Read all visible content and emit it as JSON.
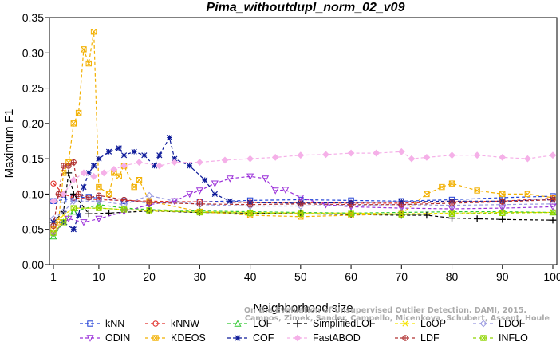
{
  "chart_data": {
    "type": "line",
    "title": "Pima_withoutdupl_norm_02_v09",
    "xlabel": "Neighborhood size",
    "ylabel": "Maximum F1",
    "xlim": [
      1,
      100
    ],
    "ylim": [
      0,
      0.35
    ],
    "xticks": [
      "1",
      "10",
      "20",
      "30",
      "40",
      "50",
      "60",
      "70",
      "80",
      "90",
      "100"
    ],
    "yticks": [
      "0.00",
      "0.05",
      "0.10",
      "0.15",
      "0.20",
      "0.25",
      "0.30",
      "0.35"
    ],
    "legend_position": "bottom",
    "series": [
      {
        "name": "kNN",
        "color": "#1f3fd6",
        "marker": "square",
        "dash": "4,3",
        "points": [
          [
            1,
            0.09
          ],
          [
            3,
            0.092
          ],
          [
            5,
            0.094
          ],
          [
            8,
            0.096
          ],
          [
            10,
            0.094
          ],
          [
            15,
            0.09
          ],
          [
            20,
            0.088
          ],
          [
            30,
            0.089
          ],
          [
            40,
            0.091
          ],
          [
            50,
            0.092
          ],
          [
            60,
            0.091
          ],
          [
            70,
            0.09
          ],
          [
            80,
            0.092
          ],
          [
            90,
            0.095
          ],
          [
            100,
            0.097
          ]
        ]
      },
      {
        "name": "kNNW",
        "color": "#e0302b",
        "marker": "circle",
        "dash": "4,3",
        "points": [
          [
            1,
            0.115
          ],
          [
            3,
            0.1
          ],
          [
            5,
            0.095
          ],
          [
            10,
            0.092
          ],
          [
            20,
            0.09
          ],
          [
            30,
            0.089
          ],
          [
            40,
            0.088
          ],
          [
            50,
            0.088
          ],
          [
            60,
            0.087
          ],
          [
            70,
            0.087
          ],
          [
            80,
            0.089
          ],
          [
            90,
            0.09
          ],
          [
            100,
            0.094
          ]
        ]
      },
      {
        "name": "LOF",
        "color": "#2ec72e",
        "marker": "triangle",
        "dash": "4,3",
        "points": [
          [
            1,
            0.04
          ],
          [
            3,
            0.06
          ],
          [
            5,
            0.075
          ],
          [
            10,
            0.085
          ],
          [
            15,
            0.08
          ],
          [
            20,
            0.078
          ],
          [
            30,
            0.076
          ],
          [
            40,
            0.075
          ],
          [
            50,
            0.074
          ],
          [
            60,
            0.073
          ],
          [
            70,
            0.074
          ],
          [
            80,
            0.075
          ],
          [
            90,
            0.075
          ],
          [
            100,
            0.074
          ]
        ]
      },
      {
        "name": "SimplifiedLOF",
        "color": "#000000",
        "marker": "plus",
        "dash": "4,3",
        "points": [
          [
            1,
            0.06
          ],
          [
            3,
            0.075
          ],
          [
            4,
            0.13
          ],
          [
            5,
            0.1
          ],
          [
            8,
            0.072
          ],
          [
            12,
            0.073
          ],
          [
            20,
            0.076
          ],
          [
            30,
            0.074
          ],
          [
            40,
            0.073
          ],
          [
            50,
            0.072
          ],
          [
            60,
            0.071
          ],
          [
            70,
            0.07
          ],
          [
            75,
            0.07
          ],
          [
            80,
            0.066
          ],
          [
            85,
            0.065
          ],
          [
            90,
            0.064
          ],
          [
            100,
            0.063
          ]
        ]
      },
      {
        "name": "LoOP",
        "color": "#f5e400",
        "marker": "x",
        "dash": "4,3",
        "points": [
          [
            1,
            0.06
          ],
          [
            3,
            0.07
          ],
          [
            5,
            0.08
          ],
          [
            10,
            0.08
          ],
          [
            15,
            0.078
          ],
          [
            20,
            0.076
          ],
          [
            30,
            0.075
          ],
          [
            40,
            0.074
          ],
          [
            50,
            0.073
          ],
          [
            60,
            0.073
          ],
          [
            70,
            0.072
          ],
          [
            80,
            0.073
          ],
          [
            90,
            0.074
          ],
          [
            100,
            0.074
          ]
        ]
      },
      {
        "name": "LDOF",
        "color": "#9999e0",
        "marker": "diamond",
        "dash": "4,3",
        "points": [
          [
            1,
            0.065
          ],
          [
            3,
            0.075
          ],
          [
            5,
            0.09
          ],
          [
            10,
            0.09
          ],
          [
            15,
            0.085
          ],
          [
            20,
            0.098
          ],
          [
            25,
            0.09
          ],
          [
            30,
            0.085
          ],
          [
            40,
            0.083
          ],
          [
            50,
            0.083
          ],
          [
            60,
            0.084
          ],
          [
            70,
            0.085
          ],
          [
            80,
            0.084
          ],
          [
            90,
            0.085
          ],
          [
            100,
            0.086
          ]
        ]
      },
      {
        "name": "ODIN",
        "color": "#9b30d9",
        "marker": "triangle-down",
        "dash": "4,3",
        "points": [
          [
            1,
            0.045
          ],
          [
            4,
            0.065
          ],
          [
            7,
            0.06
          ],
          [
            10,
            0.065
          ],
          [
            15,
            0.075
          ],
          [
            20,
            0.085
          ],
          [
            25,
            0.09
          ],
          [
            28,
            0.1
          ],
          [
            30,
            0.105
          ],
          [
            33,
            0.115
          ],
          [
            36,
            0.122
          ],
          [
            40,
            0.125
          ],
          [
            43,
            0.122
          ],
          [
            45,
            0.105
          ],
          [
            47,
            0.106
          ],
          [
            50,
            0.095
          ],
          [
            55,
            0.085
          ],
          [
            60,
            0.082
          ],
          [
            70,
            0.08
          ],
          [
            80,
            0.079
          ],
          [
            90,
            0.08
          ],
          [
            100,
            0.082
          ]
        ]
      },
      {
        "name": "KDEOS",
        "color": "#f2b000",
        "marker": "square-x",
        "dash": "4,3",
        "points": [
          [
            1,
            0.05
          ],
          [
            2,
            0.06
          ],
          [
            3,
            0.13
          ],
          [
            4,
            0.145
          ],
          [
            5,
            0.2
          ],
          [
            6,
            0.215
          ],
          [
            7,
            0.305
          ],
          [
            8,
            0.285
          ],
          [
            9,
            0.33
          ],
          [
            10,
            0.11
          ],
          [
            12,
            0.1
          ],
          [
            13,
            0.13
          ],
          [
            14,
            0.125
          ],
          [
            15,
            0.14
          ],
          [
            17,
            0.11
          ],
          [
            18,
            0.12
          ],
          [
            20,
            0.09
          ],
          [
            30,
            0.075
          ],
          [
            40,
            0.07
          ],
          [
            50,
            0.068
          ],
          [
            60,
            0.07
          ],
          [
            70,
            0.072
          ],
          [
            75,
            0.1
          ],
          [
            78,
            0.11
          ],
          [
            80,
            0.115
          ],
          [
            85,
            0.105
          ],
          [
            90,
            0.1
          ],
          [
            95,
            0.1
          ],
          [
            100,
            0.095
          ]
        ]
      },
      {
        "name": "COF",
        "color": "#0d1a99",
        "marker": "star",
        "dash": "4,3",
        "points": [
          [
            1,
            0.06
          ],
          [
            3,
            0.06
          ],
          [
            5,
            0.05
          ],
          [
            6,
            0.07
          ],
          [
            7,
            0.11
          ],
          [
            8,
            0.13
          ],
          [
            9,
            0.14
          ],
          [
            10,
            0.15
          ],
          [
            12,
            0.16
          ],
          [
            14,
            0.165
          ],
          [
            15,
            0.155
          ],
          [
            17,
            0.16
          ],
          [
            19,
            0.155
          ],
          [
            21,
            0.14
          ],
          [
            22,
            0.155
          ],
          [
            24,
            0.18
          ],
          [
            25,
            0.15
          ],
          [
            28,
            0.14
          ],
          [
            31,
            0.12
          ],
          [
            33,
            0.1
          ],
          [
            36,
            0.09
          ],
          [
            40,
            0.088
          ],
          [
            50,
            0.087
          ],
          [
            60,
            0.088
          ],
          [
            70,
            0.089
          ],
          [
            80,
            0.09
          ],
          [
            90,
            0.09
          ],
          [
            100,
            0.092
          ]
        ]
      },
      {
        "name": "FastABOD",
        "color": "#f5b0e8",
        "marker": "diamond-filled",
        "dash": "4,3",
        "points": [
          [
            1,
            0.09
          ],
          [
            3,
            0.1
          ],
          [
            5,
            0.12
          ],
          [
            7,
            0.13
          ],
          [
            9,
            0.125
          ],
          [
            11,
            0.13
          ],
          [
            13,
            0.135
          ],
          [
            15,
            0.14
          ],
          [
            18,
            0.145
          ],
          [
            22,
            0.14
          ],
          [
            25,
            0.145
          ],
          [
            30,
            0.145
          ],
          [
            35,
            0.148
          ],
          [
            40,
            0.15
          ],
          [
            45,
            0.152
          ],
          [
            50,
            0.155
          ],
          [
            55,
            0.156
          ],
          [
            60,
            0.158
          ],
          [
            65,
            0.158
          ],
          [
            70,
            0.16
          ],
          [
            72,
            0.15
          ],
          [
            75,
            0.152
          ],
          [
            80,
            0.155
          ],
          [
            85,
            0.155
          ],
          [
            90,
            0.152
          ],
          [
            95,
            0.15
          ],
          [
            100,
            0.155
          ]
        ]
      },
      {
        "name": "LDF",
        "color": "#b03030",
        "marker": "circle-plus",
        "dash": "4,3",
        "points": [
          [
            1,
            0.055
          ],
          [
            2,
            0.1
          ],
          [
            3,
            0.14
          ],
          [
            4,
            0.14
          ],
          [
            5,
            0.145
          ],
          [
            6,
            0.1
          ],
          [
            8,
            0.095
          ],
          [
            10,
            0.098
          ],
          [
            15,
            0.092
          ],
          [
            20,
            0.088
          ],
          [
            30,
            0.086
          ],
          [
            40,
            0.085
          ],
          [
            50,
            0.086
          ],
          [
            60,
            0.085
          ],
          [
            70,
            0.085
          ],
          [
            80,
            0.087
          ],
          [
            90,
            0.089
          ],
          [
            100,
            0.092
          ]
        ]
      },
      {
        "name": "INFLO",
        "color": "#8fd400",
        "marker": "square-x",
        "dash": "4,3",
        "points": [
          [
            1,
            0.045
          ],
          [
            3,
            0.06
          ],
          [
            5,
            0.08
          ],
          [
            10,
            0.08
          ],
          [
            15,
            0.078
          ],
          [
            20,
            0.077
          ],
          [
            30,
            0.074
          ],
          [
            40,
            0.073
          ],
          [
            50,
            0.072
          ],
          [
            60,
            0.072
          ],
          [
            70,
            0.071
          ],
          [
            80,
            0.072
          ],
          [
            90,
            0.073
          ],
          [
            100,
            0.074
          ]
        ]
      }
    ],
    "watermark": [
      "Campos, Zimek, Sander, Campello, Micenkova, Schubert, Assent, Houle",
      "On the Evaluation of Unsupervised Outlier Detection. DAMI, 2015."
    ]
  }
}
